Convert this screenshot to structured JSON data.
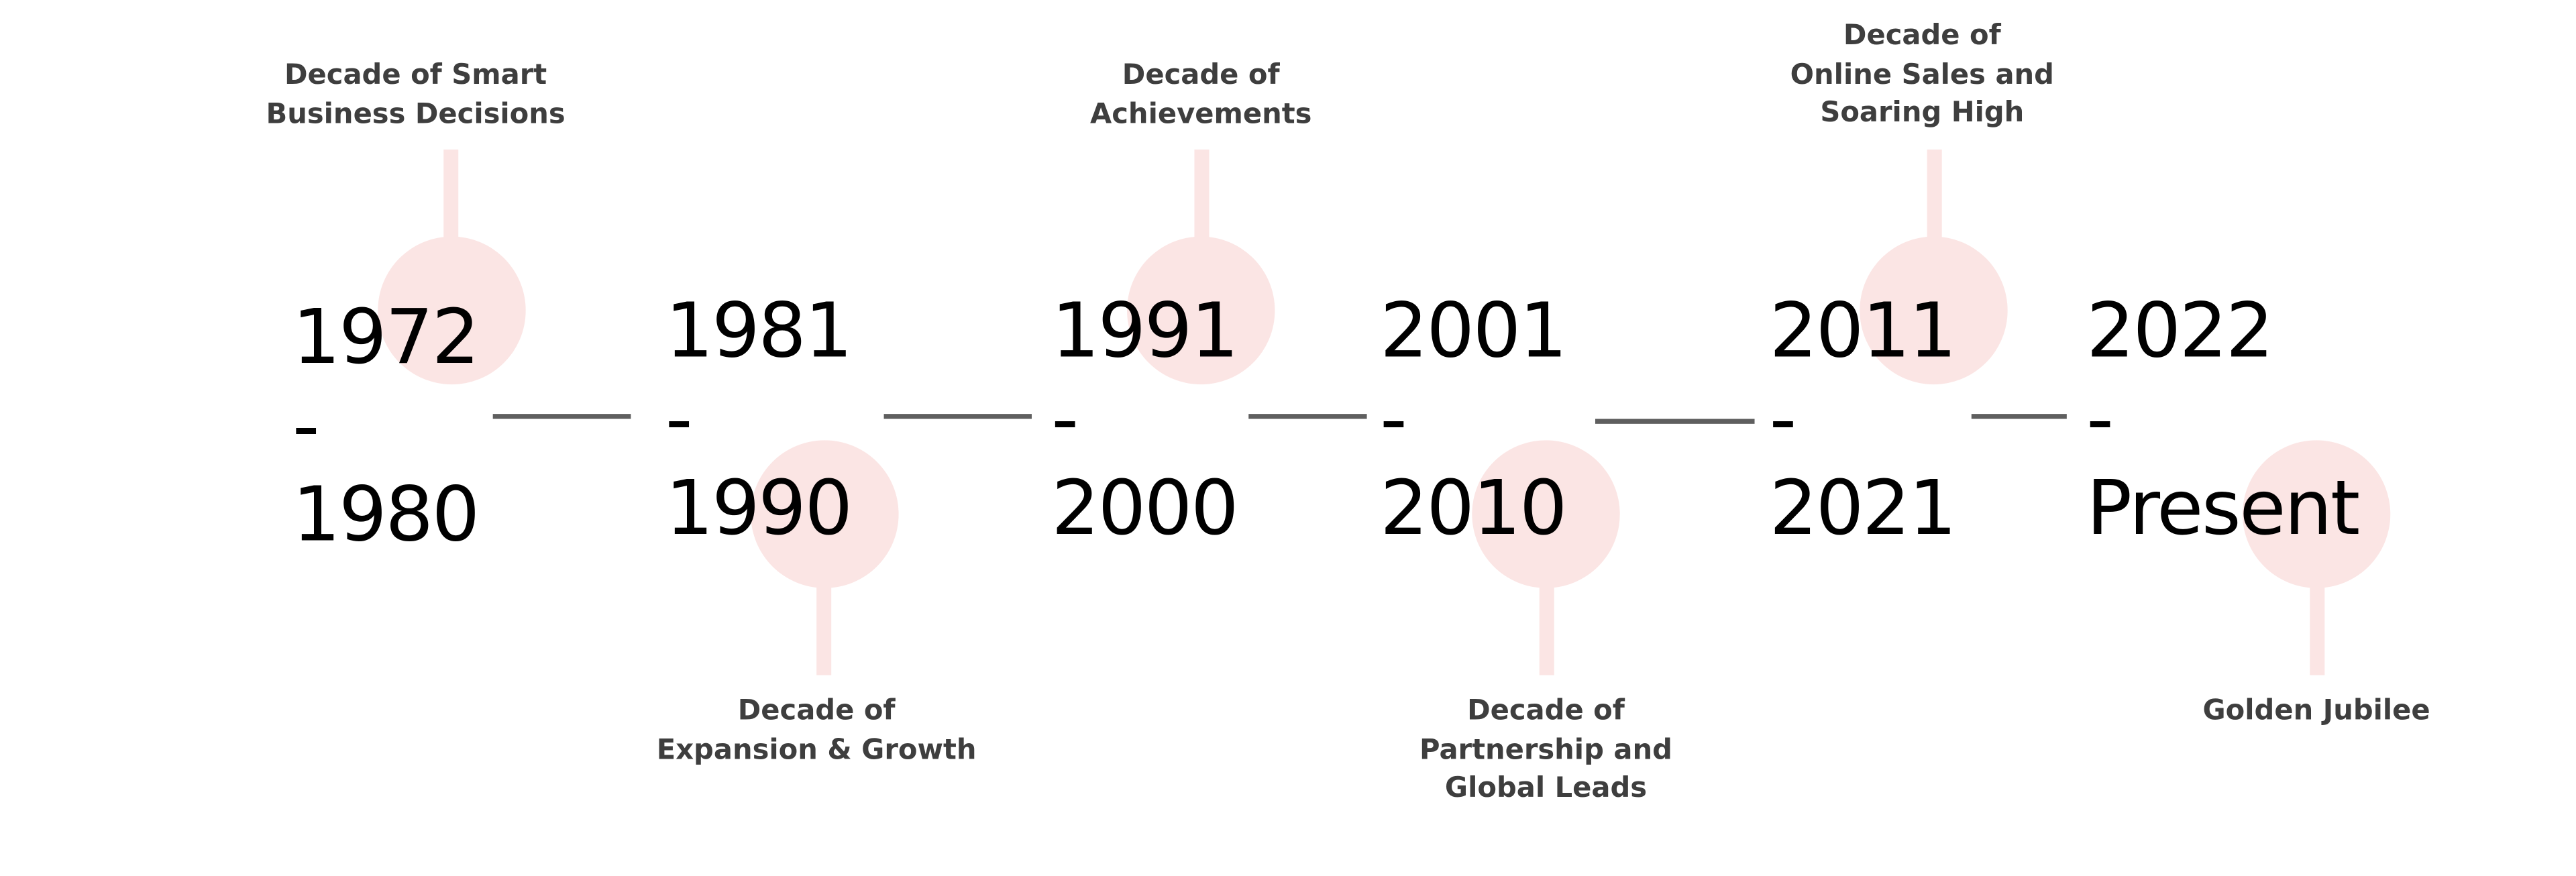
{
  "colors": {
    "accent": "#fbe5e4",
    "connector": "#5f5f5f",
    "label": "#3e3e3e",
    "year": "#000000"
  },
  "milestones": [
    {
      "start": "1972",
      "sep": "-",
      "end": "1980",
      "label": "Decade of Smart\nBusiness Decisions",
      "position": "above"
    },
    {
      "start": "1981",
      "sep": "-",
      "end": "1990",
      "label": "Decade of\nExpansion & Growth",
      "position": "below"
    },
    {
      "start": "1991",
      "sep": "-",
      "end": "2000",
      "label": "Decade of\nAchievements",
      "position": "above"
    },
    {
      "start": "2001",
      "sep": "-",
      "end": "2010",
      "label": "Decade of\nPartnership and\nGlobal Leads",
      "position": "below"
    },
    {
      "start": "2011",
      "sep": "-",
      "end": "2021",
      "label": "Decade of\nOnline Sales and\nSoaring High",
      "position": "above"
    },
    {
      "start": "2022",
      "sep": "-",
      "end": "Present",
      "label": "Golden Jubilee",
      "position": "below"
    }
  ]
}
